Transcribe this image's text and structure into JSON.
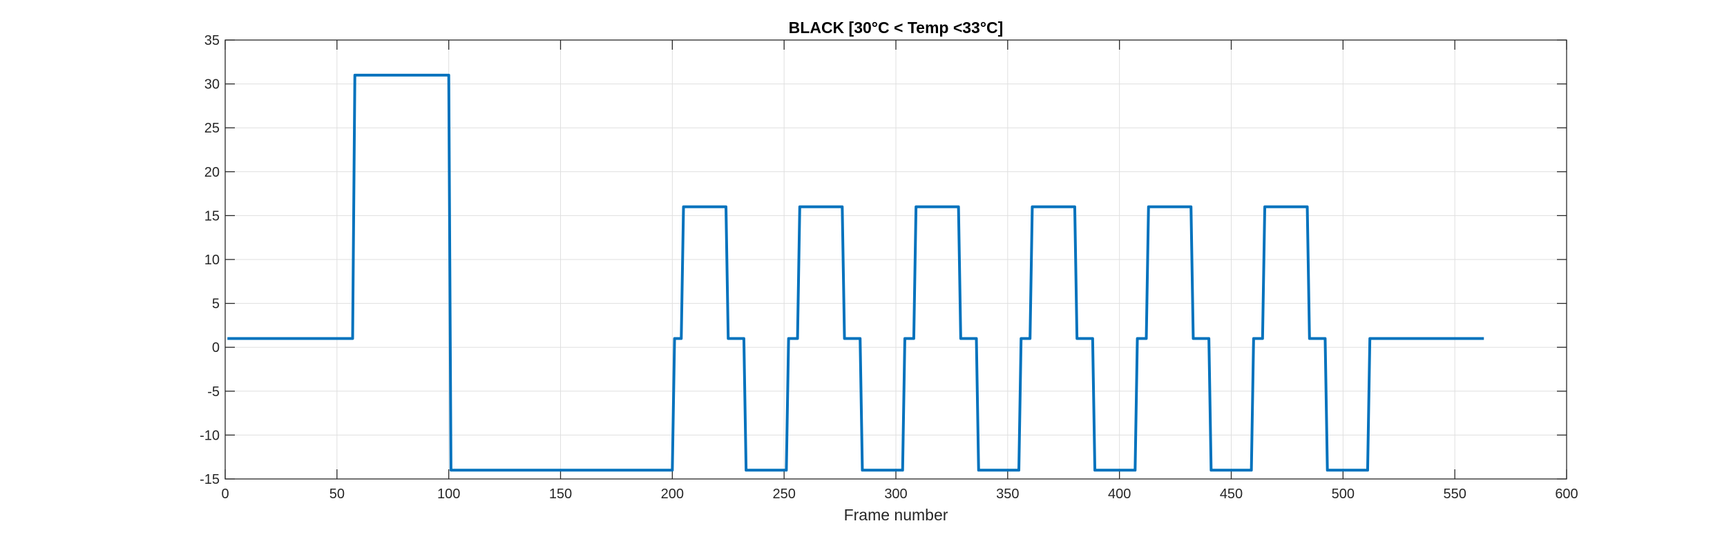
{
  "chart_data": {
    "type": "line",
    "title": "BLACK [30°C < Temp <33°C]",
    "xlabel": "Frame number",
    "ylabel": "",
    "xlim": [
      0,
      600
    ],
    "ylim": [
      -15,
      35
    ],
    "xticks": [
      0,
      50,
      100,
      150,
      200,
      250,
      300,
      350,
      400,
      450,
      500,
      550,
      600
    ],
    "yticks": [
      -15,
      -10,
      -5,
      0,
      5,
      10,
      15,
      20,
      25,
      30,
      35
    ],
    "xtick_labels": [
      "0",
      "50",
      "100",
      "150",
      "200",
      "250",
      "300",
      "350",
      "400",
      "450",
      "500",
      "550",
      "600"
    ],
    "ytick_labels": [
      "-15",
      "-10",
      "-5",
      "0",
      "5",
      "10",
      "15",
      "20",
      "25",
      "30",
      "35"
    ],
    "grid": true,
    "legend": "none",
    "series": [
      {
        "color": "#0072BD",
        "x": [
          1,
          57,
          58,
          100,
          101,
          200,
          201,
          204,
          205,
          224,
          225,
          232,
          233,
          251,
          252,
          256,
          257,
          276,
          277,
          284,
          285,
          303,
          304,
          308,
          309,
          328,
          329,
          336,
          337,
          355,
          356,
          360,
          361,
          380,
          381,
          388,
          389,
          407,
          408,
          412,
          413,
          432,
          433,
          440,
          441,
          459,
          460,
          464,
          465,
          484,
          485,
          492,
          493,
          511,
          512,
          563
        ],
        "y": [
          1,
          1,
          31,
          31,
          -14,
          -14,
          1,
          1,
          16,
          16,
          1,
          1,
          -14,
          -14,
          1,
          1,
          16,
          16,
          1,
          1,
          -14,
          -14,
          1,
          1,
          16,
          16,
          1,
          1,
          -14,
          -14,
          1,
          1,
          16,
          16,
          1,
          1,
          -14,
          -14,
          1,
          1,
          16,
          16,
          1,
          1,
          -14,
          -14,
          1,
          1,
          16,
          16,
          1,
          1,
          -14,
          -14,
          1,
          1
        ]
      }
    ]
  }
}
